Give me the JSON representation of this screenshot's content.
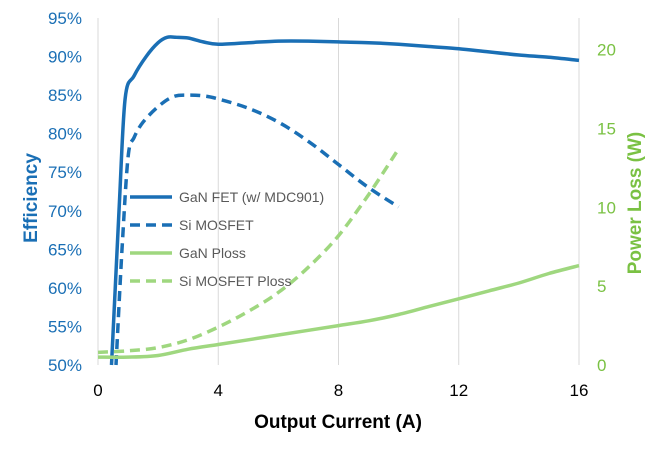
{
  "chart_data": {
    "type": "line",
    "xlabel": "Output Current (A)",
    "ylabel_left": "Efficiency",
    "ylabel_right": "Power Loss (W)",
    "x_ticks": [
      "0",
      "4",
      "8",
      "12",
      "16"
    ],
    "y_left_ticks": [
      "50%",
      "55%",
      "60%",
      "65%",
      "70%",
      "75%",
      "80%",
      "85%",
      "90%",
      "95%"
    ],
    "y_right_ticks": [
      "0",
      "5",
      "10",
      "15",
      "20"
    ],
    "xlim": [
      0,
      16
    ],
    "ylim_left": [
      50,
      95
    ],
    "ylim_right": [
      0,
      22
    ],
    "grid_x": true,
    "legend_position": "center-left",
    "colors": {
      "blue": "#1a6fb5",
      "green": "#9fd77f"
    },
    "series": [
      {
        "name": "GaN FET (w/ MDC901)",
        "axis": "left",
        "color": "#1a6fb5",
        "dash": "solid",
        "x": [
          0.45,
          0.7,
          0.9,
          1.2,
          1.6,
          2.0,
          2.3,
          2.6,
          3.0,
          3.5,
          4.0,
          5.0,
          6.0,
          7.0,
          8.0,
          9.0,
          10.0,
          11.0,
          12.0,
          13.0,
          14.0,
          15.0,
          16.0
        ],
        "values": [
          50.0,
          70.0,
          84.5,
          87.5,
          90.0,
          91.8,
          92.5,
          92.5,
          92.4,
          91.9,
          91.6,
          91.8,
          92.0,
          92.0,
          91.9,
          91.8,
          91.6,
          91.3,
          91.0,
          90.6,
          90.2,
          89.9,
          89.5
        ]
      },
      {
        "name": "Si MOSFET",
        "axis": "left",
        "color": "#1a6fb5",
        "dash": "dashed",
        "x": [
          0.6,
          0.8,
          1.0,
          1.2,
          1.5,
          2.0,
          2.5,
          3.0,
          3.5,
          4.0,
          5.0,
          6.0,
          7.0,
          8.0,
          9.0,
          10.0
        ],
        "values": [
          50.0,
          65.0,
          77.0,
          79.5,
          81.5,
          83.5,
          84.8,
          85.0,
          84.9,
          84.5,
          83.3,
          81.5,
          79.0,
          76.0,
          73.0,
          70.5
        ]
      },
      {
        "name": "GaN Ploss",
        "axis": "right",
        "color": "#9fd77f",
        "dash": "solid",
        "x": [
          0,
          1,
          2,
          3,
          4,
          5,
          6,
          7,
          8,
          9,
          10,
          11,
          12,
          13,
          14,
          15,
          16
        ],
        "values": [
          0.5,
          0.5,
          0.6,
          1.0,
          1.3,
          1.6,
          1.9,
          2.2,
          2.5,
          2.8,
          3.2,
          3.7,
          4.2,
          4.7,
          5.2,
          5.8,
          6.3
        ]
      },
      {
        "name": "Si MOSFET Ploss",
        "axis": "right",
        "color": "#9fd77f",
        "dash": "dashed",
        "x": [
          0,
          1,
          2,
          3,
          4,
          5,
          6,
          7,
          8,
          9,
          10
        ],
        "values": [
          0.8,
          0.9,
          1.1,
          1.6,
          2.4,
          3.4,
          4.6,
          6.2,
          8.2,
          10.8,
          13.7
        ]
      }
    ]
  }
}
